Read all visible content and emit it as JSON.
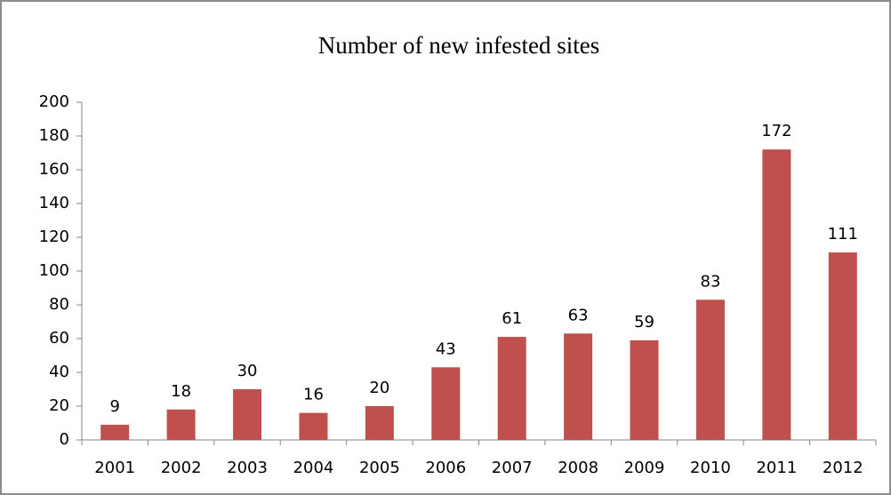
{
  "chart_data": {
    "type": "bar",
    "title": "Number of new infested sites",
    "categories": [
      "2001",
      "2002",
      "2003",
      "2004",
      "2005",
      "2006",
      "2007",
      "2008",
      "2009",
      "2010",
      "2011",
      "2012"
    ],
    "values": [
      9,
      18,
      30,
      16,
      20,
      43,
      61,
      63,
      59,
      83,
      172,
      111
    ],
    "color": "#c0504d",
    "ylim": [
      0,
      200
    ],
    "yticks": [
      0,
      20,
      40,
      60,
      80,
      100,
      120,
      140,
      160,
      180,
      200
    ],
    "grid": false
  }
}
